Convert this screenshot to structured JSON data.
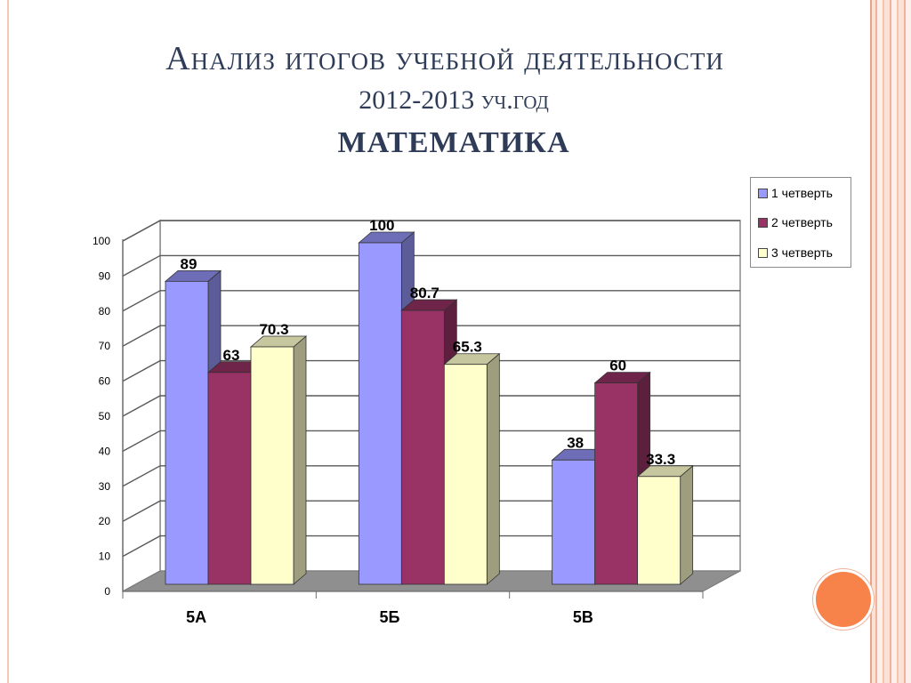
{
  "slide": {
    "title": "Анализ итогов учебной деятельности",
    "subtitle": "2012-2013 уч.год",
    "subject": "МАТЕМАТИКА"
  },
  "colors": {
    "series": [
      "#9999ff",
      "#993366",
      "#ffffcc"
    ],
    "accent_dot": "#f7834a",
    "title": "#2f3c58"
  },
  "chart_data": {
    "type": "bar",
    "categories": [
      "5А",
      "5Б",
      "5В"
    ],
    "series": [
      {
        "name": "1 четверть",
        "values": [
          89,
          100,
          38
        ],
        "labels": [
          "89",
          "100",
          "38"
        ]
      },
      {
        "name": "2 четверть",
        "values": [
          63,
          80.7,
          60
        ],
        "labels": [
          "63",
          "80.7",
          "60"
        ]
      },
      {
        "name": "3 четверть",
        "values": [
          70.3,
          65.3,
          33.3
        ],
        "labels": [
          "70.3",
          "65.3",
          "33.3"
        ]
      }
    ],
    "yticks": [
      "0",
      "10",
      "20",
      "30",
      "40",
      "50",
      "60",
      "70",
      "80",
      "90",
      "100"
    ],
    "ylim": [
      0,
      100
    ],
    "grid": true,
    "legend_position": "top-right"
  }
}
